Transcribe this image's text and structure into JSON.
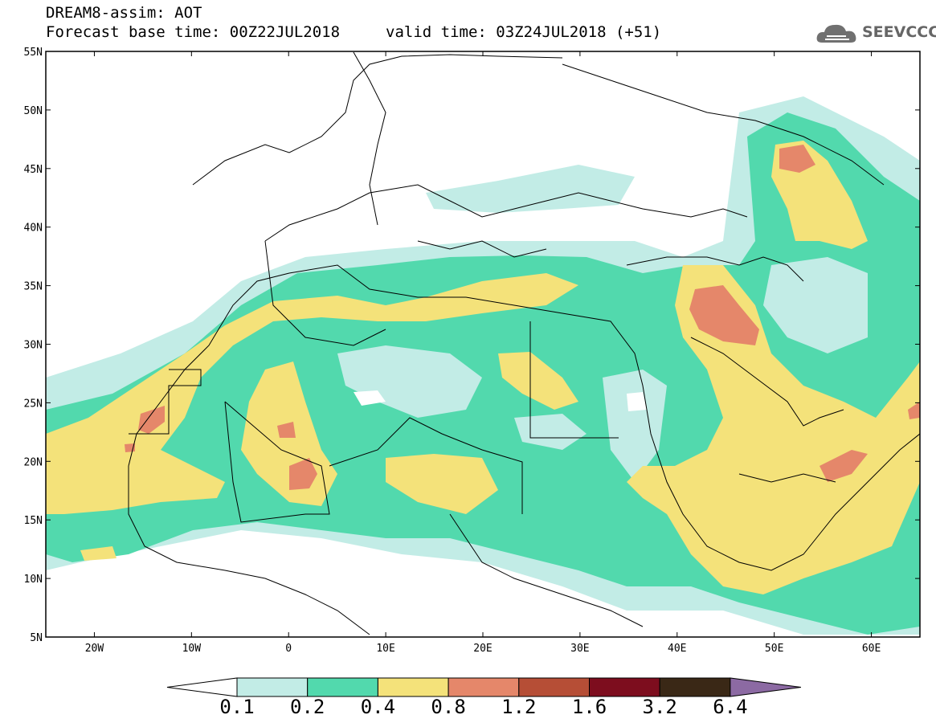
{
  "header": {
    "title": "DREAM8-assim: AOT",
    "base_time": "Forecast base time: 00Z22JUL2018",
    "valid_time": "valid time: 03Z24JUL2018 (+51)"
  },
  "logo": {
    "text": "SEEVCCC"
  },
  "map": {
    "lon_range": [
      -25,
      65
    ],
    "lat_range": [
      5,
      55
    ],
    "lat_ticks": [
      "55N",
      "50N",
      "45N",
      "40N",
      "35N",
      "30N",
      "25N",
      "20N",
      "15N",
      "10N",
      "5N"
    ],
    "lon_ticks": [
      "20W",
      "10W",
      "0",
      "10E",
      "20E",
      "30E",
      "40E",
      "50E",
      "60E"
    ]
  },
  "colorbar": {
    "labels": [
      "0.1",
      "0.2",
      "0.4",
      "0.8",
      "1.2",
      "1.6",
      "3.2",
      "6.4"
    ],
    "colors": [
      "#c2ece6",
      "#52d9ad",
      "#f4e27a",
      "#e5876a",
      "#b64e36",
      "#7d0d1e",
      "#3a2816",
      "#8c6aa3"
    ],
    "under_color": "#ffffff"
  }
}
